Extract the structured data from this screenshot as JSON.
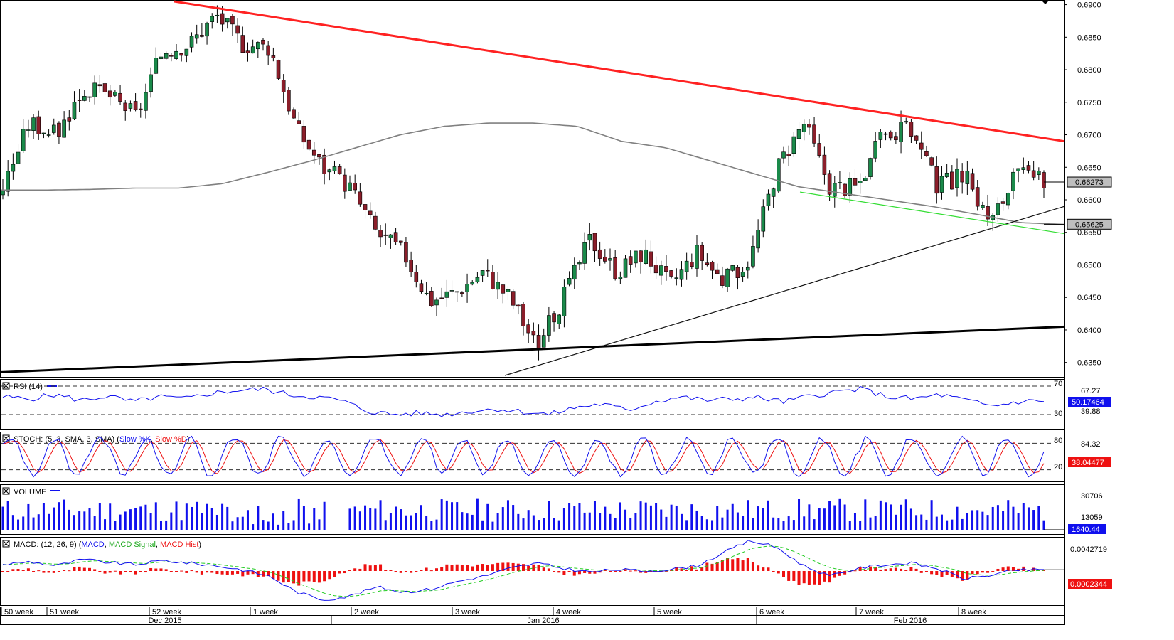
{
  "chart_data": [
    {
      "type": "candlestick",
      "panel": "price",
      "ylim": [
        0.633,
        0.6905
      ],
      "y_ticks": [
        "0.6900",
        "0.6850",
        "0.6800",
        "0.6750",
        "0.6700",
        "0.6650",
        "0.6600",
        "0.6550",
        "0.6500",
        "0.6450",
        "0.6400",
        "0.6350"
      ],
      "last_price": "0.66273",
      "ma_value": "0.65625",
      "anchor_closes": [
        0.662,
        0.672,
        0.67,
        0.677,
        0.676,
        0.673,
        0.683,
        0.684,
        0.6885,
        0.684,
        0.6835,
        0.671,
        0.665,
        0.662,
        0.655,
        0.652,
        0.6445,
        0.646,
        0.649,
        0.645,
        0.6375,
        0.645,
        0.654,
        0.649,
        0.652,
        0.647,
        0.652,
        0.6475,
        0.651,
        0.665,
        0.672,
        0.662,
        0.662,
        0.67,
        0.671,
        0.662,
        0.664,
        0.6565,
        0.664,
        0.6627
      ],
      "moving_average": [
        0.6615,
        0.6615,
        0.6616,
        0.6618,
        0.6618,
        0.6625,
        0.6642,
        0.666,
        0.668,
        0.67,
        0.6713,
        0.6718,
        0.6718,
        0.6713,
        0.669,
        0.668,
        0.666,
        0.664,
        0.662,
        0.661,
        0.66,
        0.659,
        0.6578,
        0.6565,
        0.6562
      ],
      "trendlines": [
        {
          "name": "descending-resistance",
          "color": "#ff2222",
          "y_start": 0.6905,
          "y_end": 0.669
        },
        {
          "name": "ascending-support",
          "color": "#111111",
          "y_start": 0.633,
          "y_end": 0.659
        },
        {
          "name": "long-term-support",
          "color": "#000000",
          "y_start": 0.6335,
          "y_end": 0.6405
        },
        {
          "name": "channel-support",
          "color": "#33dd33",
          "y_start": 0.6612,
          "y_end": 0.6548
        }
      ]
    },
    {
      "type": "line",
      "panel": "rsi",
      "label": "RSI (14)",
      "ylim": [
        10,
        80
      ],
      "levels": [
        "70",
        "30"
      ],
      "right_labels": [
        "67.27",
        "39.88"
      ],
      "current": "50.17464",
      "anchors": [
        55,
        52,
        58,
        50,
        56,
        48,
        55,
        52,
        60,
        64,
        66,
        58,
        55,
        50,
        35,
        30,
        32,
        30,
        35,
        38,
        34,
        30,
        40,
        45,
        36,
        48,
        55,
        50,
        52,
        54,
        48,
        56,
        62,
        66,
        55,
        52,
        58,
        50,
        42,
        48,
        50
      ],
      "color": "#1010ee"
    },
    {
      "type": "line",
      "panel": "stoch",
      "label_prefix": "STOCH: (5, 3, SMA, 3, SMA) (",
      "k_label": "Slow %K",
      "d_label": "Slow %D",
      "ylim": [
        0,
        100
      ],
      "levels": [
        "80",
        "20"
      ],
      "right_labels": [
        "84.32"
      ],
      "current": "38.04477",
      "seed": 7,
      "colors": {
        "k": "#1010ee",
        "d": "#ee1111"
      }
    },
    {
      "type": "bar",
      "panel": "volume",
      "label": "VOLUME",
      "right_labels": [
        "30706",
        "13059"
      ],
      "current": "1640.44",
      "ymax": 40000,
      "seed": 11,
      "color": "#1010ee"
    },
    {
      "type": "line",
      "panel": "macd",
      "label_prefix": "MACD: (12, 26, 9) (",
      "macd_label": "MACD",
      "signal_label": "MACD Signal",
      "hist_label": "MACD Hist",
      "right_labels": [
        "0.0042719"
      ],
      "current": "0.0002344",
      "ylim": [
        -0.0065,
        0.0065
      ],
      "anchors": [
        0.0012,
        0.0018,
        0.001,
        0.0022,
        0.0016,
        0.0012,
        0.002,
        0.0015,
        0.001,
        0.0002,
        -0.001,
        -0.004,
        -0.0055,
        -0.0048,
        -0.003,
        -0.004,
        -0.0035,
        -0.002,
        -0.001,
        0.0005,
        0.0015,
        0.0005,
        -0.0002,
        0.0003,
        0.0,
        0.0003,
        0.001,
        0.0035,
        0.0058,
        0.0045,
        0.001,
        -0.001,
        0.0005,
        0.0012,
        0.0015,
        0.0005,
        -0.0015,
        -0.0008,
        0.0002,
        0.0002
      ],
      "colors": {
        "macd": "#1010ee",
        "signal": "#22cc22",
        "hist": "#ee1111"
      }
    }
  ],
  "x_axis": {
    "week_labels": [
      "50 week",
      "51 week",
      "52 week",
      "1 week",
      "2 week",
      "3 week",
      "4 week",
      "5 week",
      "6 week",
      "7 week",
      "8 week"
    ],
    "month_labels": [
      "Dec 2015",
      "Jan 2016",
      "Feb 2016"
    ]
  },
  "colors": {
    "bull_candle": "#1a8a4a",
    "bear_candle": "#8b1e2a",
    "moving_average": "#808080",
    "grid_dash": "#333333",
    "label_box_fill": "#bebebe",
    "label_box_fill_blue": "#1010ee",
    "label_box_fill_red": "#ee1111"
  }
}
